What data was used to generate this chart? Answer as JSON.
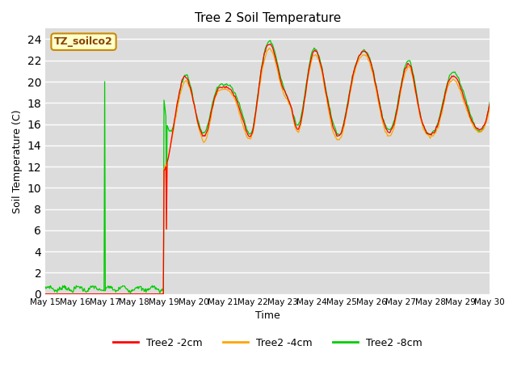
{
  "title": "Tree 2 Soil Temperature",
  "xlabel": "Time",
  "ylabel": "Soil Temperature (C)",
  "ylim": [
    0,
    25
  ],
  "yticks": [
    0,
    2,
    4,
    6,
    8,
    10,
    12,
    14,
    16,
    18,
    20,
    22,
    24
  ],
  "bg_color": "#dcdcdc",
  "fig_color": "#ffffff",
  "annotation_text": "TZ_soilco2",
  "annotation_bg": "#ffffcc",
  "annotation_border": "#cc8800",
  "line_colors": [
    "#ff0000",
    "#ffa500",
    "#00cc00"
  ],
  "line_labels": [
    "Tree2 -2cm",
    "Tree2 -4cm",
    "Tree2 -8cm"
  ],
  "x_tick_labels": [
    "May 15",
    "May 16",
    "May 17",
    "May 18",
    "May 19",
    "May 20",
    "May 21",
    "May 22",
    "May 23",
    "May 24",
    "May 25",
    "May 26",
    "May 27",
    "May 28",
    "May 29",
    "May 30"
  ]
}
